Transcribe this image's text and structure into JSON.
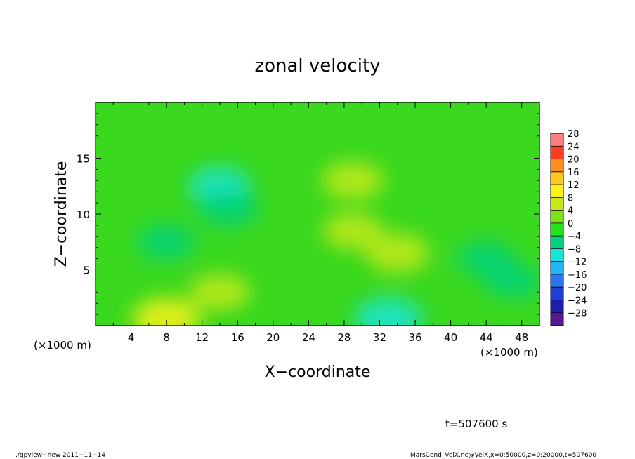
{
  "chart_data": {
    "type": "heatmap",
    "title": "zonal velocity",
    "xlabel": "X−coordinate",
    "ylabel": "Z−coordinate",
    "x_unit_left": "(×1000 m)",
    "x_unit_right": "(×1000 m)",
    "xlim": [
      0,
      50
    ],
    "ylim": [
      0,
      20
    ],
    "x_ticks": [
      4,
      8,
      12,
      16,
      20,
      24,
      28,
      32,
      36,
      40,
      44,
      48
    ],
    "x_tick_labels": [
      "4",
      "8",
      "12",
      "16",
      "20",
      "24",
      "28",
      "32",
      "36",
      "40",
      "44",
      "48"
    ],
    "y_ticks": [
      5,
      10,
      15
    ],
    "y_tick_labels": [
      "5",
      "10",
      "15"
    ],
    "colorbar": {
      "levels": [
        -30,
        -26,
        -22,
        -18,
        -14,
        -10,
        -6,
        -2,
        2,
        6,
        10,
        14,
        18,
        22,
        26,
        30
      ],
      "labels": [
        "−28",
        "−24",
        "−20",
        "−16",
        "−12",
        "−8",
        "−4",
        "0",
        "4",
        "8",
        "12",
        "16",
        "20",
        "24",
        "28"
      ],
      "colors": [
        "#5a1890",
        "#1f1fae",
        "#1d3fd6",
        "#2a76f0",
        "#1fb6f5",
        "#17e5d8",
        "#00d27c",
        "#22e21b",
        "#7ce21a",
        "#c5ea1b",
        "#fbf21b",
        "#ffc61e",
        "#ff8f1b",
        "#ff3d22",
        "#ff7f7f"
      ]
    },
    "field_features": [
      {
        "x": 8,
        "z": 0.6,
        "value": 10,
        "feature": "positive maximum near surface"
      },
      {
        "x": 33,
        "z": 0.6,
        "value": -10,
        "feature": "negative minimum near surface"
      },
      {
        "x": 29,
        "z": 13,
        "value": 7,
        "feature": "positive core aloft"
      },
      {
        "x": 34,
        "z": 6.5,
        "value": 8,
        "feature": "positive core"
      },
      {
        "x": 29,
        "z": 8.5,
        "value": 6,
        "feature": "positive lobe"
      },
      {
        "x": 14,
        "z": 3,
        "value": 6,
        "feature": "positive patch"
      },
      {
        "x": 14,
        "z": 12.5,
        "value": -7,
        "feature": "negative streak aloft"
      },
      {
        "x": 15,
        "z": 10.5,
        "value": -6,
        "feature": "negative streak"
      },
      {
        "x": 8,
        "z": 7.5,
        "value": -5,
        "feature": "negative patch"
      },
      {
        "x": 44,
        "z": 6,
        "value": -5,
        "feature": "negative patch"
      },
      {
        "x": 47,
        "z": 4,
        "value": -4,
        "feature": "negative patch"
      }
    ]
  },
  "annotations": {
    "time_label": "t=507600 s",
    "footer_left": "./gpview−new  2011−11−14",
    "footer_right": "MarsCond_VelX.nc@VelX,x=0:50000,z=0:20000,t=507600"
  }
}
